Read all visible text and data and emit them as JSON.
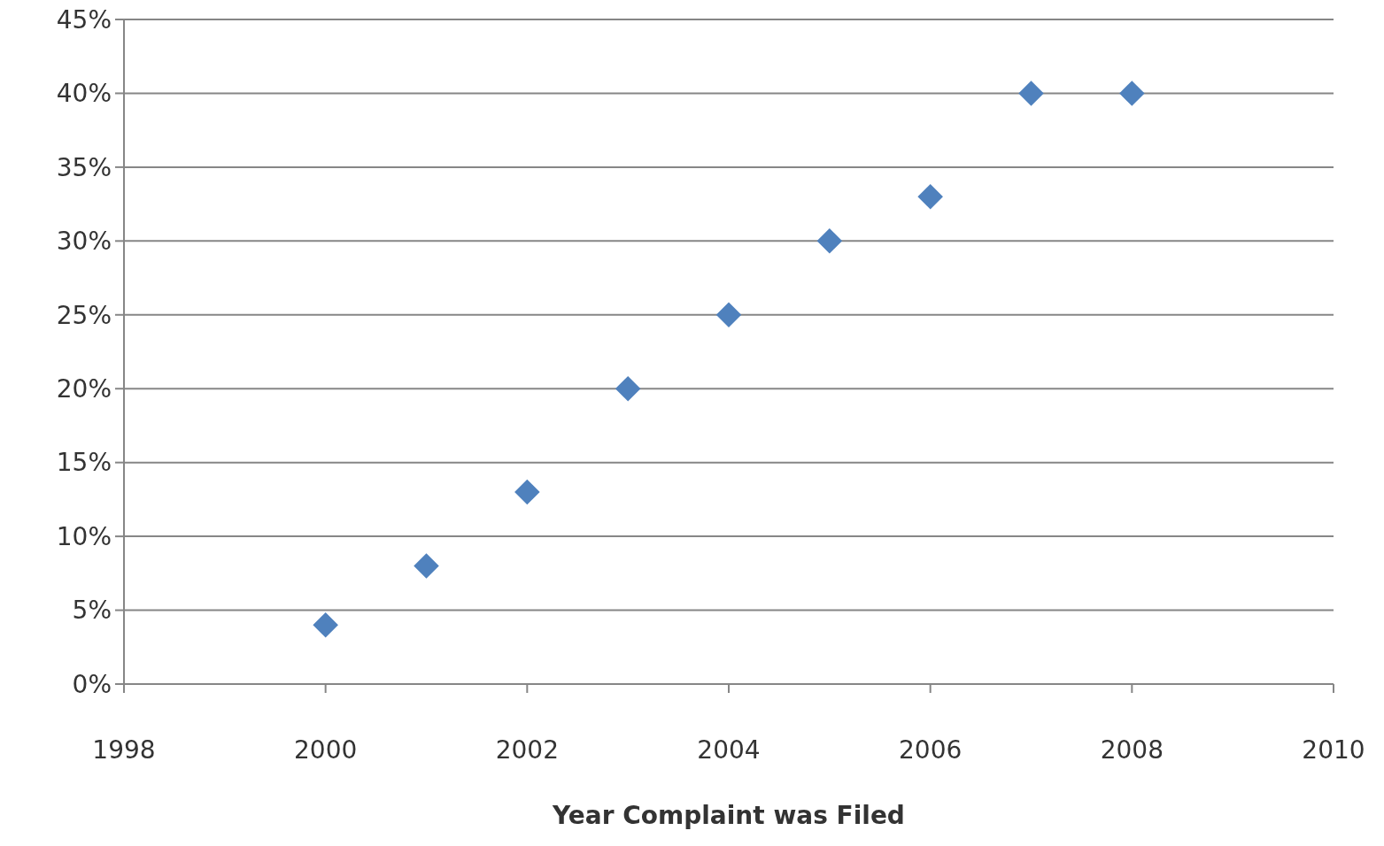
{
  "chart_data": {
    "type": "scatter",
    "xlabel": "Year Complaint was Filed",
    "x": [
      2000,
      2001,
      2002,
      2003,
      2004,
      2005,
      2006,
      2007,
      2008
    ],
    "values": [
      4,
      8,
      13,
      20,
      25,
      30,
      33,
      40,
      40
    ],
    "color": "#4f81bd",
    "marker": "diamond",
    "xlim": [
      1998,
      2010
    ],
    "xticks": [
      1998,
      2000,
      2002,
      2004,
      2006,
      2008,
      2010
    ],
    "ylim": [
      0,
      45
    ],
    "yticks": [
      {
        "value": 0,
        "label": "0%"
      },
      {
        "value": 5,
        "label": "5%"
      },
      {
        "value": 10,
        "label": "10%"
      },
      {
        "value": 15,
        "label": "15%"
      },
      {
        "value": 20,
        "label": "20%"
      },
      {
        "value": 25,
        "label": "25%"
      },
      {
        "value": 30,
        "label": "30%"
      },
      {
        "value": 35,
        "label": "35%"
      },
      {
        "value": 40,
        "label": "40%"
      },
      {
        "value": 45,
        "label": "45%"
      }
    ],
    "grid": "y"
  }
}
